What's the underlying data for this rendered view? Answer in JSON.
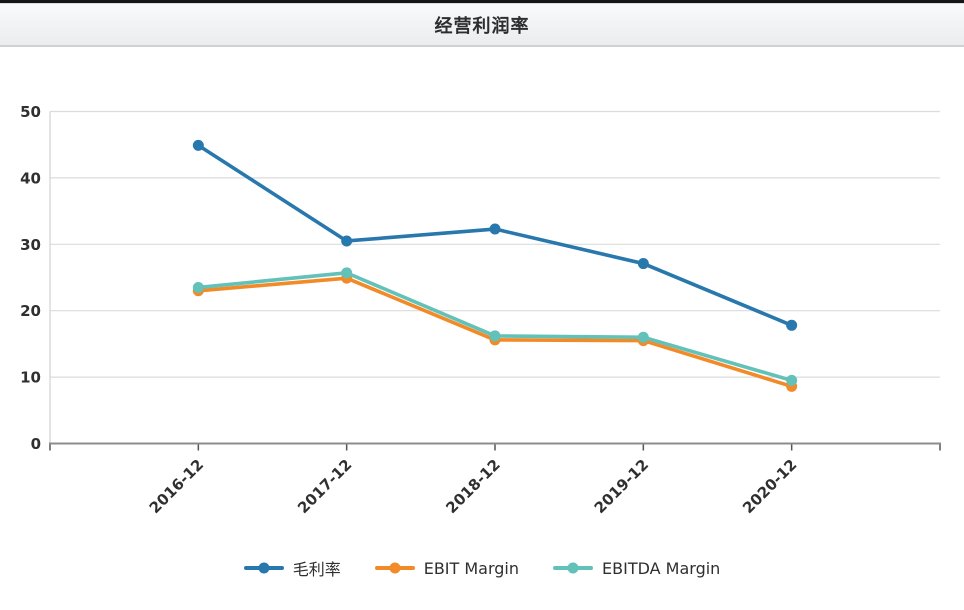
{
  "header": {
    "title": "经营利润率"
  },
  "chart_data": {
    "type": "line",
    "title": "经营利润率",
    "xlabel": "",
    "ylabel": "",
    "categories": [
      "2016-12",
      "2017-12",
      "2018-12",
      "2019-12",
      "2020-12"
    ],
    "series": [
      {
        "name": "毛利率",
        "color": "#2878ad",
        "values": [
          44.9,
          30.5,
          32.3,
          27.1,
          17.8
        ]
      },
      {
        "name": "EBIT Margin",
        "color": "#f28a28",
        "values": [
          23.0,
          24.9,
          15.6,
          15.5,
          8.6
        ]
      },
      {
        "name": "EBITDA Margin",
        "color": "#62c1b8",
        "values": [
          23.5,
          25.7,
          16.2,
          16.0,
          9.5
        ]
      }
    ],
    "ylim": [
      0,
      50
    ],
    "yticks": [
      0,
      10,
      20,
      30,
      40,
      50
    ],
    "grid": true,
    "legend_position": "bottom",
    "colors": {
      "grid": "#dcdcdc",
      "axis_line": "#8c8c8c",
      "y_axis_line": "#c9c9c9",
      "tick": "#555555",
      "text": "#2f2f2f"
    }
  }
}
